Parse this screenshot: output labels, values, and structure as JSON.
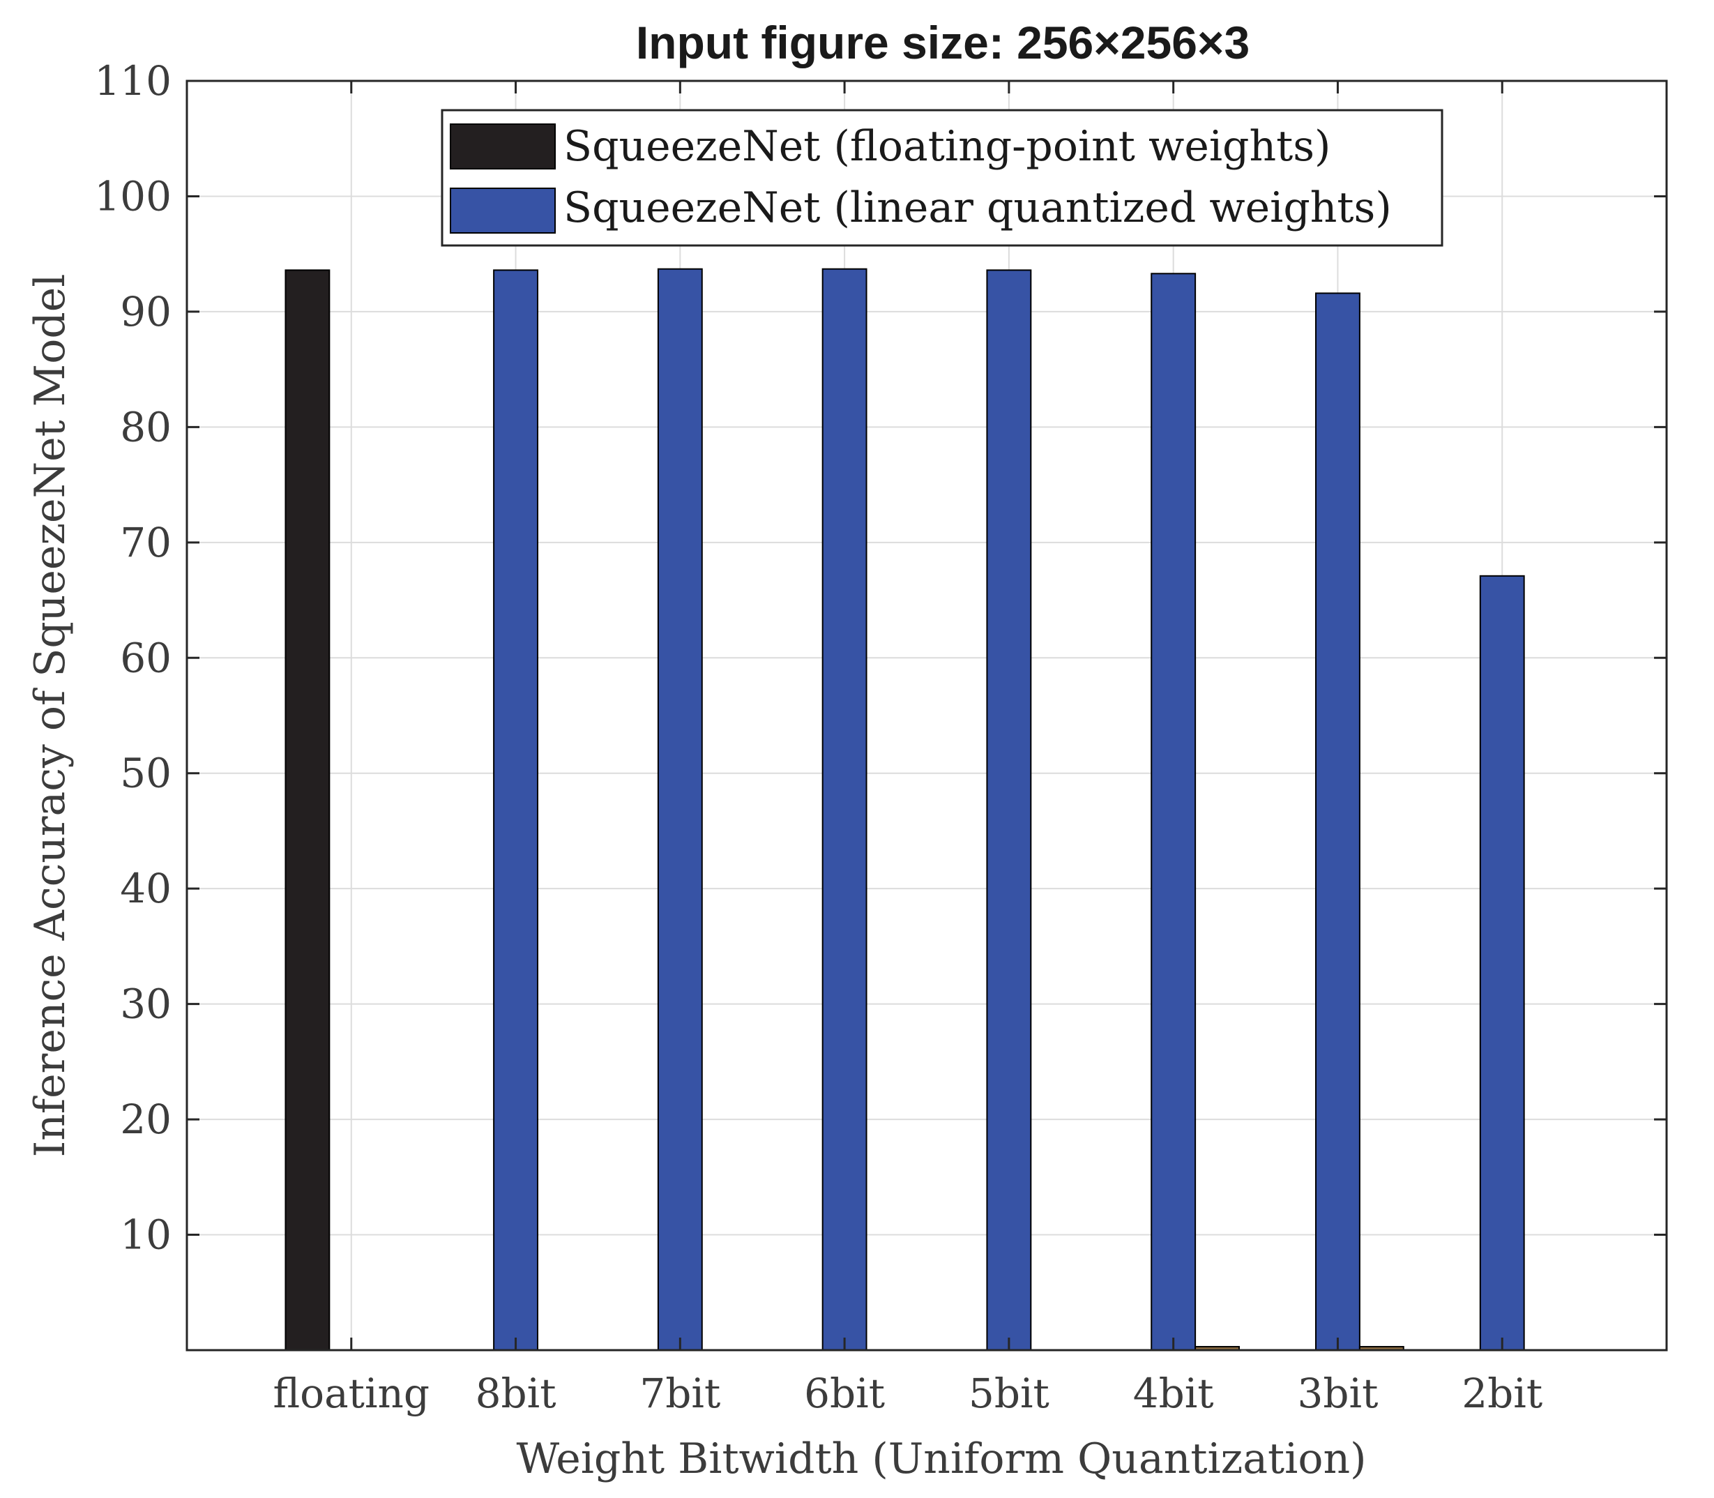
{
  "chart_data": {
    "type": "bar",
    "title": "Input figure size: 256×256×3",
    "xlabel": "Weight Bitwidth (Uniform Quantization)",
    "ylabel": "Inference Accuracy of SqueezeNet Model",
    "categories": [
      "floating",
      "8bit",
      "7bit",
      "6bit",
      "5bit",
      "4bit",
      "3bit",
      "2bit"
    ],
    "ylim": [
      0,
      110
    ],
    "yticks": [
      10,
      20,
      30,
      40,
      50,
      60,
      70,
      80,
      90,
      100,
      110
    ],
    "grid": true,
    "legend_position": "top",
    "series": [
      {
        "name": "SqueezeNet (floating-point weights)",
        "color": "#231f20",
        "values": [
          93.6,
          null,
          null,
          null,
          null,
          null,
          null,
          null
        ]
      },
      {
        "name": "SqueezeNet (linear quantized weights)",
        "color": "#3753a5",
        "values": [
          null,
          93.6,
          93.7,
          93.7,
          93.6,
          93.3,
          91.6,
          67.1
        ]
      },
      {
        "color": "#8a6a40",
        "values": [
          null,
          null,
          null,
          null,
          null,
          0.3,
          0.3,
          null
        ]
      }
    ]
  }
}
